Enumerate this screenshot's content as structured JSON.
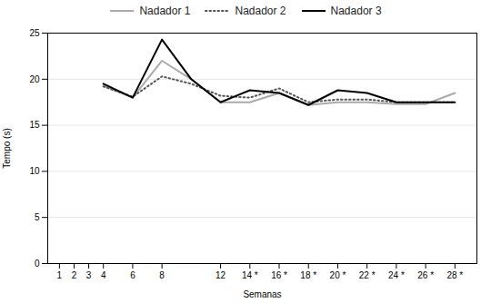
{
  "chart_data": {
    "type": "line",
    "xlabel": "Semanas",
    "ylabel": "Tempo (s)",
    "x": [
      4,
      6,
      8,
      10,
      12,
      14,
      16,
      18,
      20,
      22,
      24,
      26,
      28
    ],
    "series": [
      {
        "name": "Nadador 1",
        "color": "#aaaaaa",
        "line_style": "solid",
        "values": [
          19.3,
          18.0,
          22.0,
          20.0,
          17.5,
          17.5,
          18.5,
          17.2,
          17.5,
          17.5,
          17.3,
          17.3,
          18.5
        ]
      },
      {
        "name": "Nadador 2",
        "color": "#555555",
        "line_style": "dotted",
        "values": [
          19.2,
          18.1,
          20.3,
          19.5,
          18.2,
          18.0,
          19.0,
          17.5,
          17.8,
          17.8,
          17.5,
          17.5,
          17.5
        ]
      },
      {
        "name": "Nadador 3",
        "color": "#000000",
        "line_style": "solid",
        "values": [
          19.5,
          18.0,
          24.3,
          20.0,
          17.5,
          18.8,
          18.5,
          17.2,
          18.8,
          18.5,
          17.5,
          17.5,
          17.5
        ]
      }
    ],
    "xlim": [
      0.2,
      29.5
    ],
    "xticks": [
      1,
      2,
      3,
      4,
      6,
      8,
      12,
      {
        "value": 14,
        "label": "14 *"
      },
      {
        "value": 16,
        "label": "16 *"
      },
      {
        "value": 18,
        "label": "18 *"
      },
      {
        "value": 20,
        "label": "20 *"
      },
      {
        "value": 22,
        "label": "22 *"
      },
      {
        "value": 24,
        "label": "24 *"
      },
      {
        "value": 26,
        "label": "26 *"
      },
      {
        "value": 28,
        "label": "28 *"
      }
    ],
    "ylim": [
      0,
      25
    ],
    "yticks": [
      0,
      5,
      10,
      15,
      20,
      25
    ],
    "grid": true,
    "legend": "top"
  }
}
